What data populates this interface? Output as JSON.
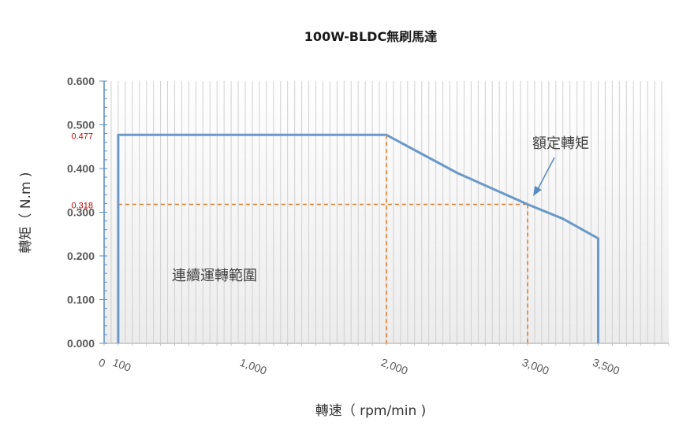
{
  "chart_data": {
    "type": "line",
    "title": "100W-BLDC無刷馬達",
    "xlabel": "轉速（ rpm/min )",
    "ylabel": "轉矩（ N.m )",
    "x_ticks": [
      {
        "value": 0,
        "label": "0"
      },
      {
        "value": 100,
        "label": "100"
      },
      {
        "value": 1000,
        "label": "1,000"
      },
      {
        "value": 2000,
        "label": "2,000"
      },
      {
        "value": 3000,
        "label": "3,000"
      },
      {
        "value": 3500,
        "label": "3,500"
      }
    ],
    "y_ticks": [
      "0.000",
      "0.100",
      "0.200",
      "0.300",
      "0.400",
      "0.500",
      "0.600"
    ],
    "xlim": [
      0,
      4000
    ],
    "ylim": [
      0,
      0.6
    ],
    "grid": "vertical",
    "series": [
      {
        "x": [
          100,
          100,
          2000,
          2500,
          3000,
          3250,
          3500,
          3500
        ],
        "y": [
          0,
          0.477,
          0.477,
          0.39,
          0.318,
          0.285,
          0.24,
          0
        ]
      }
    ],
    "reference_lines": [
      {
        "from": [
          100,
          0.318
        ],
        "to": [
          3000,
          0.318
        ]
      },
      {
        "from": [
          2000,
          0.477
        ],
        "to": [
          2000,
          0
        ]
      },
      {
        "from": [
          3000,
          0.318
        ],
        "to": [
          3000,
          0
        ]
      }
    ],
    "marked_values": [
      {
        "value": 0.477,
        "label": "0.477"
      },
      {
        "value": 0.318,
        "label": "0.318"
      }
    ],
    "annotations": [
      {
        "text": "額定轉矩",
        "points_to": [
          2950,
          0.335
        ]
      },
      {
        "text": "連續運轉範圍",
        "at": [
          800,
          0.16
        ]
      }
    ],
    "colors": {
      "series": "#6a99c9",
      "reference": "#e07b28",
      "grid": "#d0d0d0",
      "mark_label": "#c00000"
    }
  }
}
